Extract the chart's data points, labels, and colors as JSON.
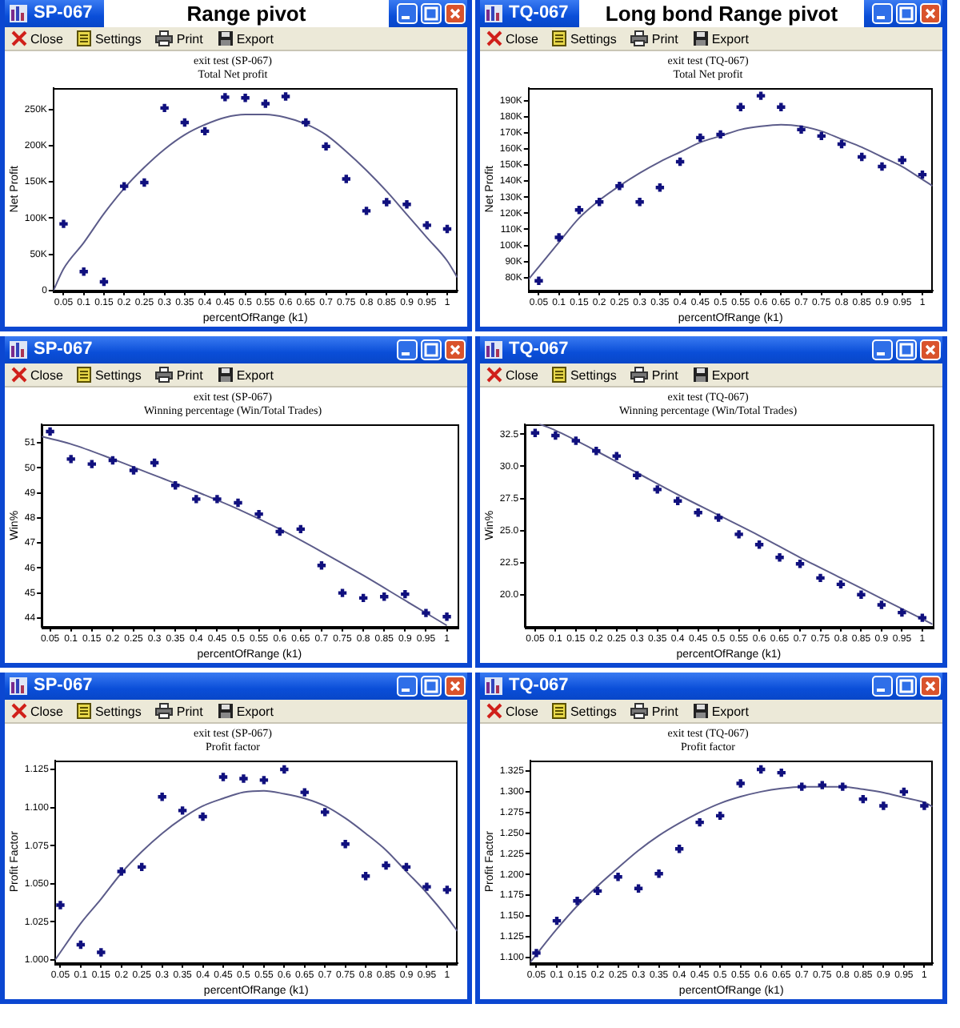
{
  "chart_data": [
    {
      "type": "scatter",
      "title": "exit test (SP-067)",
      "subtitle": "Total Net profit",
      "xlabel": "percentOfRange (k1)",
      "ylabel": "Net Profit",
      "annotations": [
        "SP-067",
        "Close",
        "Settings",
        "Print",
        "Export",
        "Range pivot"
      ],
      "xlim": [
        0.025,
        1.025
      ],
      "xticks": [
        0.05,
        0.1,
        0.15,
        0.2,
        0.25,
        0.3,
        0.35,
        0.4,
        0.45,
        0.5,
        0.55,
        0.6,
        0.65,
        0.7,
        0.75,
        0.8,
        0.85,
        0.9,
        0.95,
        1
      ],
      "ylim": [
        0,
        280000
      ],
      "yticks": [
        0,
        {
          "value": 50000,
          "label": "50K"
        },
        {
          "value": 100000,
          "label": "100K"
        },
        {
          "value": 150000,
          "label": "150K"
        },
        {
          "value": 200000,
          "label": "200K"
        },
        {
          "value": 250000,
          "label": "250K"
        }
      ],
      "x": [
        0.05,
        0.1,
        0.15,
        0.2,
        0.25,
        0.3,
        0.35,
        0.4,
        0.45,
        0.5,
        0.55,
        0.6,
        0.65,
        0.7,
        0.75,
        0.8,
        0.85,
        0.9,
        0.95,
        1
      ],
      "series": [
        {
          "type": "scatter",
          "color": "#10107e",
          "marker": "cross",
          "values": [
            92000,
            26000,
            12000,
            144000,
            149000,
            252000,
            232000,
            220000,
            267000,
            266000,
            258000,
            268000,
            232000,
            199000,
            154000,
            110000,
            122000,
            119000,
            90000,
            85000
          ]
        },
        {
          "type": "line",
          "color": "#5c5c8a",
          "marker": "none",
          "line_style": "solid",
          "x": [
            0.025,
            0.05,
            0.1,
            0.15,
            0.2,
            0.25,
            0.3,
            0.35,
            0.4,
            0.45,
            0.5,
            0.55,
            0.6,
            0.65,
            0.7,
            0.75,
            0.8,
            0.85,
            0.9,
            0.95,
            1,
            1.025
          ],
          "values": [
            0,
            30000,
            66000,
            106000,
            141000,
            170000,
            195000,
            215000,
            229000,
            239000,
            243000,
            243000,
            239000,
            230000,
            215000,
            192000,
            166000,
            137000,
            105000,
            73000,
            41000,
            18000
          ]
        }
      ]
    },
    {
      "type": "scatter",
      "title": "exit test (TQ-067)",
      "subtitle": "Total Net profit",
      "xlabel": "percentOfRange (k1)",
      "ylabel": "Net Profit",
      "annotations": [
        "TQ-067",
        "Close",
        "Settings",
        "Print",
        "Export",
        "Long bond Range pivot"
      ],
      "xlim": [
        0.025,
        1.025
      ],
      "xticks": [
        0.05,
        0.1,
        0.15,
        0.2,
        0.25,
        0.3,
        0.35,
        0.4,
        0.45,
        0.5,
        0.55,
        0.6,
        0.65,
        0.7,
        0.75,
        0.8,
        0.85,
        0.9,
        0.95,
        1
      ],
      "ylim": [
        72000,
        198000
      ],
      "yticks": [
        {
          "value": 80000,
          "label": "80K"
        },
        {
          "value": 90000,
          "label": "90K"
        },
        {
          "value": 100000,
          "label": "100K"
        },
        {
          "value": 110000,
          "label": "110K"
        },
        {
          "value": 120000,
          "label": "120K"
        },
        {
          "value": 130000,
          "label": "130K"
        },
        {
          "value": 140000,
          "label": "140K"
        },
        {
          "value": 150000,
          "label": "150K"
        },
        {
          "value": 160000,
          "label": "160K"
        },
        {
          "value": 170000,
          "label": "170K"
        },
        {
          "value": 180000,
          "label": "180K"
        },
        {
          "value": 190000,
          "label": "190K"
        }
      ],
      "x": [
        0.05,
        0.1,
        0.15,
        0.2,
        0.25,
        0.3,
        0.35,
        0.4,
        0.45,
        0.5,
        0.55,
        0.6,
        0.65,
        0.7,
        0.75,
        0.8,
        0.85,
        0.9,
        0.95,
        1
      ],
      "series": [
        {
          "type": "scatter",
          "color": "#10107e",
          "marker": "cross",
          "values": [
            78000,
            105000,
            122000,
            127000,
            137000,
            127000,
            136000,
            152000,
            167000,
            169000,
            186000,
            193000,
            186000,
            172000,
            168000,
            163000,
            155000,
            149000,
            153000,
            144000
          ]
        },
        {
          "type": "line",
          "color": "#5c5c8a",
          "marker": "none",
          "line_style": "solid",
          "x": [
            0.025,
            0.1,
            0.15,
            0.2,
            0.25,
            0.3,
            0.35,
            0.4,
            0.45,
            0.5,
            0.55,
            0.6,
            0.65,
            0.7,
            0.75,
            0.8,
            0.85,
            0.9,
            0.95,
            1,
            1.025
          ],
          "values": [
            79000,
            102000,
            117000,
            128000,
            137000,
            145000,
            152000,
            158000,
            164000,
            168000,
            172000,
            174000,
            175000,
            174000,
            171000,
            166000,
            161000,
            155000,
            149000,
            141000,
            137000
          ]
        }
      ]
    },
    {
      "type": "scatter",
      "title": "exit test (SP-067)",
      "subtitle": "Winning percentage (Win/Total Trades)",
      "xlabel": "percentOfRange (k1)",
      "ylabel": "Win%",
      "annotations": [
        "SP-067",
        "Close",
        "Settings",
        "Print",
        "Export"
      ],
      "xlim": [
        0.03,
        1.025
      ],
      "xticks": [
        0.05,
        0.1,
        0.15,
        0.2,
        0.25,
        0.3,
        0.35,
        0.4,
        0.45,
        0.5,
        0.55,
        0.6,
        0.65,
        0.7,
        0.75,
        0.8,
        0.85,
        0.9,
        0.95,
        1
      ],
      "ylim": [
        43.65,
        51.75
      ],
      "yticks": [
        44,
        45,
        46,
        47,
        48,
        49,
        50,
        51
      ],
      "x": [
        0.05,
        0.1,
        0.15,
        0.2,
        0.25,
        0.3,
        0.35,
        0.4,
        0.45,
        0.5,
        0.55,
        0.6,
        0.65,
        0.7,
        0.75,
        0.8,
        0.85,
        0.9,
        0.95,
        1
      ],
      "series": [
        {
          "type": "scatter",
          "color": "#10107e",
          "marker": "cross",
          "values": [
            51.45,
            50.35,
            50.15,
            50.3,
            49.9,
            50.2,
            49.3,
            48.75,
            48.75,
            48.6,
            48.15,
            47.45,
            47.55,
            46.1,
            45,
            44.8,
            44.85,
            44.95,
            44.2,
            44.05
          ]
        },
        {
          "type": "line",
          "color": "#5c5c8a",
          "marker": "none",
          "line_style": "solid",
          "x": [
            0.03,
            0.1,
            0.2,
            0.3,
            0.4,
            0.5,
            0.6,
            0.7,
            0.8,
            0.9,
            1
          ],
          "values": [
            51.25,
            50.95,
            50.35,
            49.7,
            49.05,
            48.35,
            47.55,
            46.65,
            45.7,
            44.7,
            43.7
          ]
        }
      ]
    },
    {
      "type": "scatter",
      "title": "exit test (TQ-067)",
      "subtitle": "Winning percentage (Win/Total Trades)",
      "xlabel": "percentOfRange (k1)",
      "ylabel": "Win%",
      "annotations": [
        "TQ-067",
        "Close",
        "Settings",
        "Print",
        "Export"
      ],
      "xlim": [
        0.025,
        1.025
      ],
      "xticks": [
        0.05,
        0.1,
        0.15,
        0.2,
        0.25,
        0.3,
        0.35,
        0.4,
        0.45,
        0.5,
        0.55,
        0.6,
        0.65,
        0.7,
        0.75,
        0.8,
        0.85,
        0.9,
        0.95,
        1
      ],
      "ylim": [
        17.5,
        33.3
      ],
      "yticks": [
        {
          "value": 20,
          "label": "20.0"
        },
        22.5,
        {
          "value": 25,
          "label": "25.0"
        },
        27.5,
        {
          "value": 30,
          "label": "30.0"
        },
        32.5
      ],
      "x": [
        0.05,
        0.1,
        0.15,
        0.2,
        0.25,
        0.3,
        0.35,
        0.4,
        0.45,
        0.5,
        0.55,
        0.6,
        0.65,
        0.7,
        0.75,
        0.8,
        0.85,
        0.9,
        0.95,
        1
      ],
      "series": [
        {
          "type": "scatter",
          "color": "#10107e",
          "marker": "cross",
          "values": [
            32.6,
            32.4,
            32,
            31.2,
            30.8,
            29.3,
            28.2,
            27.3,
            26.4,
            26,
            24.7,
            23.9,
            22.9,
            22.4,
            21.3,
            20.8,
            20,
            19.2,
            18.6,
            18.2
          ]
        },
        {
          "type": "line",
          "color": "#5c5c8a",
          "marker": "none",
          "line_style": "solid",
          "x": [
            0.06,
            0.1,
            0.2,
            0.3,
            0.4,
            0.5,
            0.6,
            0.7,
            0.8,
            0.9,
            1,
            1.025
          ],
          "values": [
            33.3,
            32.8,
            31.2,
            29.5,
            27.8,
            26.2,
            24.6,
            22.9,
            21.3,
            19.7,
            18.1,
            17.7
          ]
        }
      ]
    },
    {
      "type": "scatter",
      "title": "exit test (SP-067)",
      "subtitle": "Profit factor",
      "xlabel": "percentOfRange (k1)",
      "ylabel": "Profit Factor",
      "annotations": [
        "SP-067",
        "Close",
        "Settings",
        "Print",
        "Export"
      ],
      "xlim": [
        0.037,
        1.025
      ],
      "xticks": [
        0.05,
        0.1,
        0.15,
        0.2,
        0.25,
        0.3,
        0.35,
        0.4,
        0.45,
        0.5,
        0.55,
        0.6,
        0.65,
        0.7,
        0.75,
        0.8,
        0.85,
        0.9,
        0.95,
        1
      ],
      "ylim": [
        0.998,
        1.131
      ],
      "yticks": [
        {
          "value": 1,
          "label": "1.000"
        },
        1.025,
        {
          "value": 1.05,
          "label": "1.050"
        },
        1.075,
        {
          "value": 1.1,
          "label": "1.100"
        },
        1.125
      ],
      "x": [
        0.05,
        0.1,
        0.15,
        0.2,
        0.25,
        0.3,
        0.35,
        0.4,
        0.45,
        0.5,
        0.55,
        0.6,
        0.65,
        0.7,
        0.75,
        0.8,
        0.85,
        0.9,
        0.95,
        1
      ],
      "series": [
        {
          "type": "scatter",
          "color": "#10107e",
          "marker": "cross",
          "values": [
            1.036,
            1.01,
            1.005,
            1.058,
            1.061,
            1.107,
            1.098,
            1.094,
            1.12,
            1.119,
            1.118,
            1.125,
            1.11,
            1.097,
            1.076,
            1.055,
            1.062,
            1.061,
            1.048,
            1.046
          ]
        },
        {
          "type": "line",
          "color": "#5c5c8a",
          "marker": "none",
          "line_style": "solid",
          "x": [
            0.037,
            0.1,
            0.15,
            0.2,
            0.25,
            0.3,
            0.35,
            0.4,
            0.45,
            0.5,
            0.55,
            0.6,
            0.65,
            0.7,
            0.75,
            0.8,
            0.85,
            0.9,
            0.95,
            1,
            1.025
          ],
          "values": [
            1,
            1.024,
            1.04,
            1.057,
            1.071,
            1.083,
            1.093,
            1.101,
            1.106,
            1.11,
            1.111,
            1.109,
            1.106,
            1.101,
            1.093,
            1.083,
            1.072,
            1.058,
            1.044,
            1.028,
            1.019
          ]
        }
      ]
    },
    {
      "type": "scatter",
      "title": "exit test (TQ-067)",
      "subtitle": "Profit factor",
      "xlabel": "percentOfRange (k1)",
      "ylabel": "Profit Factor",
      "annotations": [
        "TQ-067",
        "Close",
        "Settings",
        "Print",
        "Export"
      ],
      "xlim": [
        0.035,
        1.02
      ],
      "xticks": [
        0.05,
        0.1,
        0.15,
        0.2,
        0.25,
        0.3,
        0.35,
        0.4,
        0.45,
        0.5,
        0.55,
        0.6,
        0.65,
        0.7,
        0.75,
        0.8,
        0.85,
        0.9,
        0.95,
        1
      ],
      "ylim": [
        1.093,
        1.338
      ],
      "yticks": [
        {
          "value": 1.1,
          "label": "1.100"
        },
        1.125,
        {
          "value": 1.15,
          "label": "1.150"
        },
        1.175,
        {
          "value": 1.2,
          "label": "1.200"
        },
        1.225,
        {
          "value": 1.25,
          "label": "1.250"
        },
        1.275,
        {
          "value": 1.3,
          "label": "1.300"
        },
        1.325
      ],
      "x": [
        0.05,
        0.1,
        0.15,
        0.2,
        0.25,
        0.3,
        0.35,
        0.4,
        0.45,
        0.5,
        0.55,
        0.6,
        0.65,
        0.7,
        0.75,
        0.8,
        0.85,
        0.9,
        0.95,
        1
      ],
      "series": [
        {
          "type": "scatter",
          "color": "#10107e",
          "marker": "cross",
          "values": [
            1.105,
            1.144,
            1.168,
            1.18,
            1.197,
            1.183,
            1.201,
            1.231,
            1.263,
            1.271,
            1.31,
            1.327,
            1.323,
            1.306,
            1.308,
            1.306,
            1.291,
            1.283,
            1.3,
            1.283
          ]
        },
        {
          "type": "line",
          "color": "#5c5c8a",
          "marker": "none",
          "line_style": "solid",
          "x": [
            0.035,
            0.1,
            0.15,
            0.2,
            0.25,
            0.3,
            0.35,
            0.4,
            0.45,
            0.5,
            0.55,
            0.6,
            0.65,
            0.7,
            0.75,
            0.8,
            0.85,
            0.9,
            0.95,
            1,
            1.02
          ],
          "values": [
            1.094,
            1.134,
            1.162,
            1.186,
            1.208,
            1.229,
            1.247,
            1.262,
            1.275,
            1.286,
            1.294,
            1.3,
            1.304,
            1.306,
            1.306,
            1.306,
            1.303,
            1.299,
            1.293,
            1.287,
            1.282
          ]
        }
      ]
    }
  ]
}
